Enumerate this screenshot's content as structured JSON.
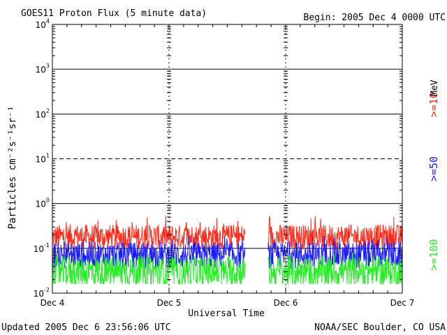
{
  "chart_data": {
    "type": "line",
    "title": "GOES11 Proton Flux (5 minute data)",
    "begin_label": "Begin: 2005 Dec 4 0000 UTC",
    "xlabel": "Universal Time",
    "ylabel": "Particles cm⁻²s⁻¹sr⁻¹",
    "y_scale": "log",
    "ylim": [
      0.01,
      10000
    ],
    "y_ticks": [
      {
        "value": 10000,
        "base": "10",
        "exp": "4"
      },
      {
        "value": 1000,
        "base": "10",
        "exp": "3"
      },
      {
        "value": 100,
        "base": "10",
        "exp": "2"
      },
      {
        "value": 10,
        "base": "10",
        "exp": "1"
      },
      {
        "value": 1,
        "base": "10",
        "exp": "0"
      },
      {
        "value": 0.1,
        "base": "10",
        "exp": "-1"
      },
      {
        "value": 0.01,
        "base": "10",
        "exp": "-2"
      }
    ],
    "x_ticks": [
      "Dec 4",
      "Dec 5",
      "Dec 6",
      "Dec 7"
    ],
    "x_range_days": [
      0,
      3
    ],
    "grid": true,
    "legend_unit": "MeV",
    "data_gap_days": [
      1.65,
      1.85
    ],
    "series": [
      {
        "name": ">=10",
        "color": "#ff2a1a",
        "baseline": 0.18,
        "spread": 0.28,
        "spike_max": 0.55
      },
      {
        "name": ">=50",
        "color": "#1a1aff",
        "baseline": 0.07,
        "spread": 0.3,
        "spike_max": 0.2
      },
      {
        "name": ">=100",
        "color": "#22ee22",
        "baseline": 0.03,
        "spread": 0.35,
        "spike_max": 0.08
      }
    ]
  },
  "footer": {
    "updated": "Updated 2005 Dec  6 23:56:06 UTC",
    "source": "NOAA/SEC Boulder, CO USA"
  }
}
